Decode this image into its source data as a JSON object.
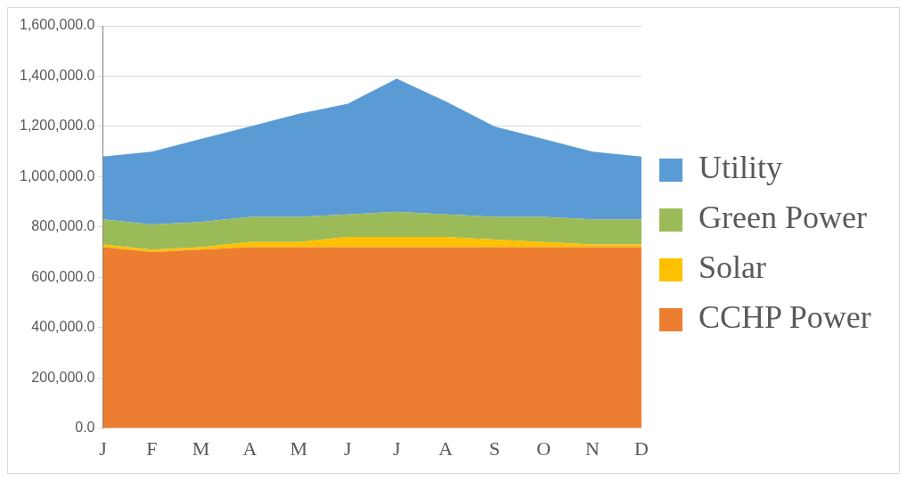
{
  "chart_data": {
    "type": "area",
    "stacked": true,
    "categories": [
      "J",
      "F",
      "M",
      "A",
      "M",
      "J",
      "J",
      "A",
      "S",
      "O",
      "N",
      "D"
    ],
    "series": [
      {
        "name": "CCHP Power",
        "color": "#ed7d31",
        "values": [
          720000,
          700000,
          710000,
          720000,
          720000,
          720000,
          720000,
          720000,
          720000,
          720000,
          720000,
          720000
        ]
      },
      {
        "name": "Solar",
        "color": "#ffc000",
        "values": [
          10000,
          10000,
          10000,
          20000,
          20000,
          40000,
          40000,
          40000,
          30000,
          20000,
          10000,
          10000
        ]
      },
      {
        "name": "Green Power",
        "color": "#9bbb59",
        "values": [
          100000,
          100000,
          100000,
          100000,
          100000,
          90000,
          100000,
          90000,
          90000,
          100000,
          100000,
          100000
        ]
      },
      {
        "name": "Utility",
        "color": "#5b9bd5",
        "values": [
          250000,
          290000,
          330000,
          360000,
          410000,
          440000,
          530000,
          450000,
          360000,
          310000,
          270000,
          250000
        ]
      }
    ],
    "ylim": [
      0,
      1600000
    ],
    "yticks": [
      {
        "value": 0,
        "label": "0.0"
      },
      {
        "value": 200000,
        "label": "200,000.0"
      },
      {
        "value": 400000,
        "label": "400,000.0"
      },
      {
        "value": 600000,
        "label": "600,000.0"
      },
      {
        "value": 800000,
        "label": "800,000.0"
      },
      {
        "value": 1000000,
        "label": "1,000,000.0"
      },
      {
        "value": 1200000,
        "label": "1,200,000.0"
      },
      {
        "value": 1400000,
        "label": "1,400,000.0"
      },
      {
        "value": 1600000,
        "label": "1,600,000.0"
      }
    ],
    "grid": "y",
    "legend": "right"
  }
}
